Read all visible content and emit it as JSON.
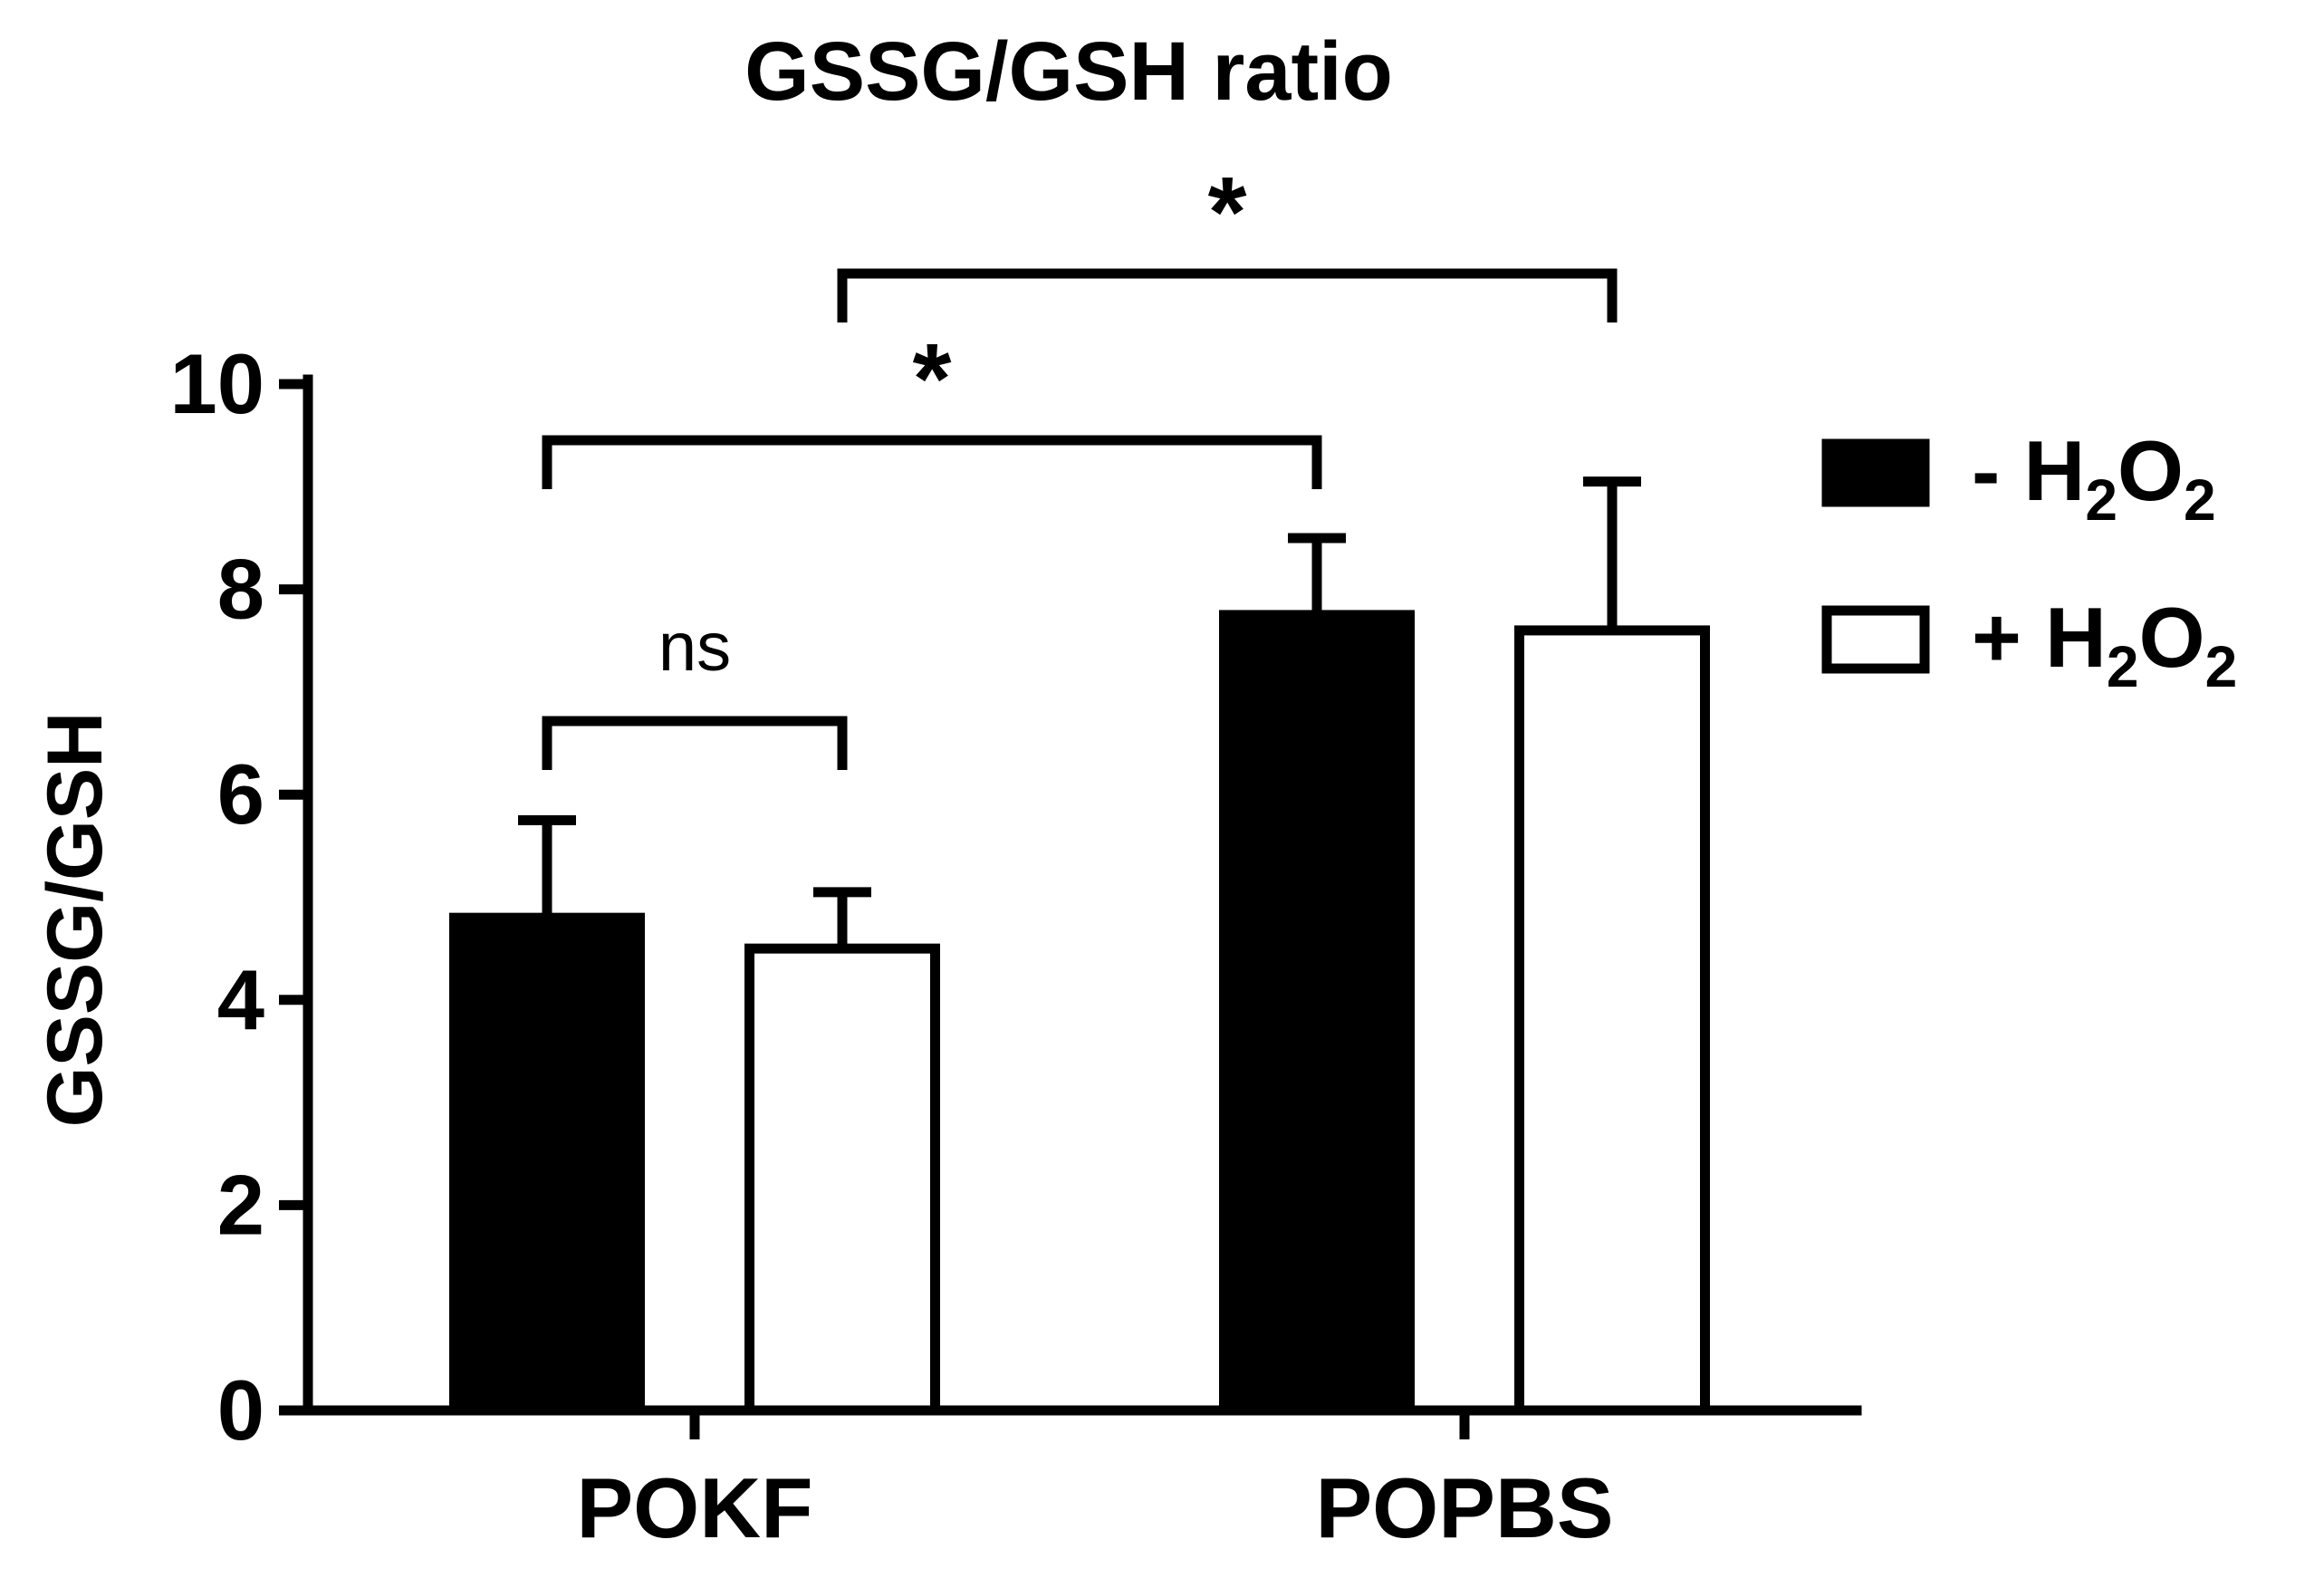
{
  "chart_data": {
    "type": "bar",
    "title": "GSSG/GSH ratio",
    "xlabel": "",
    "ylabel": "GSSG/GSH",
    "ylim": [
      0,
      10
    ],
    "yticks": [
      "0",
      "2",
      "4",
      "6",
      "8",
      "10"
    ],
    "categories": [
      "POKF",
      "POPBS"
    ],
    "series": [
      {
        "name": "- H2O2",
        "label_main": "- H",
        "sub1": "2",
        "mid": "O",
        "sub2": "2",
        "fill": "#000000",
        "values": [
          4.8,
          7.75
        ],
        "errors": [
          0.95,
          0.75
        ]
      },
      {
        "name": "+ H2O2",
        "label_main": "+ H",
        "sub1": "2",
        "mid": "O",
        "sub2": "2",
        "fill": "#ffffff",
        "values": [
          4.5,
          7.6
        ],
        "errors": [
          0.55,
          1.45
        ]
      }
    ],
    "legend": "right",
    "grid": false,
    "annotations": [
      {
        "label": "ns",
        "from": {
          "series": 0,
          "category": 0
        },
        "to": {
          "series": 1,
          "category": 0
        },
        "bold": false
      },
      {
        "label": "*",
        "from": {
          "series": 0,
          "category": 0
        },
        "to": {
          "series": 0,
          "category": 1
        },
        "bold": true
      },
      {
        "label": "*",
        "from": {
          "series": 1,
          "category": 0
        },
        "to": {
          "series": 1,
          "category": 1
        },
        "bold": true
      }
    ]
  }
}
